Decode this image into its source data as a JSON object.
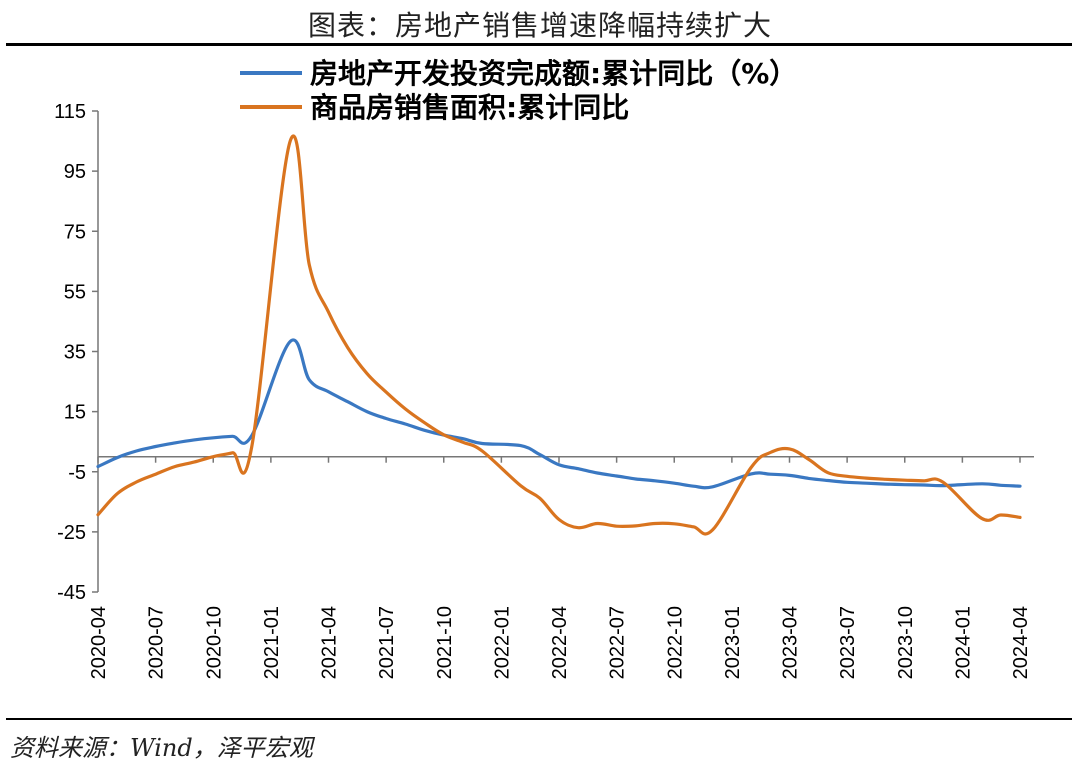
{
  "title": "图表：房地产销售增速降幅持续扩大",
  "source": "资料来源：Wind，泽平宏观",
  "chart_data": {
    "type": "line",
    "title": "图表：房地产销售增速降幅持续扩大",
    "xlabel": "",
    "ylabel": "",
    "ylim": [
      -45,
      115
    ],
    "yticks": [
      115,
      95,
      75,
      55,
      35,
      15,
      -5,
      -25,
      -45
    ],
    "grid": false,
    "legend": "top",
    "x": [
      "2020-04",
      "2020-05",
      "2020-06",
      "2020-07",
      "2020-08",
      "2020-09",
      "2020-10",
      "2020-11",
      "2020-12",
      "2021-02",
      "2021-03",
      "2021-04",
      "2021-05",
      "2021-06",
      "2021-07",
      "2021-08",
      "2021-09",
      "2021-10",
      "2021-11",
      "2021-12",
      "2022-02",
      "2022-03",
      "2022-04",
      "2022-05",
      "2022-06",
      "2022-07",
      "2022-08",
      "2022-09",
      "2022-10",
      "2022-11",
      "2022-12",
      "2023-02",
      "2023-03",
      "2023-04",
      "2023-05",
      "2023-06",
      "2023-07",
      "2023-08",
      "2023-09",
      "2023-10",
      "2023-11",
      "2023-12",
      "2024-02",
      "2024-03",
      "2024-04"
    ],
    "xtick_labels": [
      "2020-04",
      "2020-07",
      "2020-10",
      "2021-01",
      "2021-04",
      "2021-07",
      "2021-10",
      "2022-01",
      "2022-04",
      "2022-07",
      "2022-10",
      "2023-01",
      "2023-04",
      "2023-07",
      "2023-10",
      "2024-01",
      "2024-04"
    ],
    "series": [
      {
        "name": "房地产开发投资完成额:累计同比（%）",
        "color": "#3A78C2",
        "values": [
          -3.3,
          -0.3,
          1.9,
          3.4,
          4.6,
          5.6,
          6.3,
          6.8,
          7.0,
          38.3,
          25.6,
          21.6,
          18.3,
          15.0,
          12.7,
          10.9,
          8.8,
          7.2,
          6.0,
          4.4,
          3.7,
          0.7,
          -2.7,
          -4.0,
          -5.4,
          -6.4,
          -7.4,
          -8.0,
          -8.8,
          -9.8,
          -10.0,
          -5.7,
          -5.8,
          -6.2,
          -7.2,
          -7.9,
          -8.5,
          -8.8,
          -9.1,
          -9.3,
          -9.4,
          -9.6,
          -9.0,
          -9.5,
          -9.8
        ]
      },
      {
        "name": "商品房销售面积:累计同比",
        "color": "#D9741F",
        "values": [
          -19.3,
          -12.3,
          -8.4,
          -5.8,
          -3.3,
          -1.8,
          0.0,
          1.3,
          3.2,
          104.9,
          63.8,
          48.1,
          36.3,
          27.7,
          21.5,
          15.9,
          11.3,
          7.3,
          4.8,
          1.9,
          -9.6,
          -13.8,
          -20.9,
          -23.6,
          -22.2,
          -23.1,
          -23.0,
          -22.2,
          -22.3,
          -23.3,
          -24.3,
          -3.6,
          1.4,
          2.6,
          -0.9,
          -5.3,
          -6.5,
          -7.1,
          -7.5,
          -7.8,
          -8.0,
          -8.5,
          -20.5,
          -19.4,
          -20.2
        ]
      }
    ]
  }
}
